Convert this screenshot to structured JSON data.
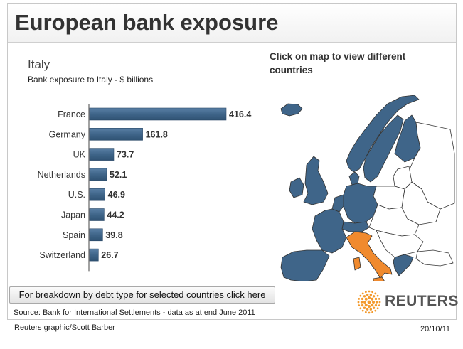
{
  "header": {
    "title": "European bank exposure"
  },
  "chart_panel": {
    "country": "Italy",
    "subtitle": "Bank exposure to Italy - $ billions",
    "button_label": "For breakdown by debt type for selected countries click here",
    "source": "Source: Bank for International Settlements - data as at end June 2011"
  },
  "chart_data": {
    "type": "bar",
    "orientation": "horizontal",
    "title": "Italy",
    "subtitle": "Bank exposure to Italy - $ billions",
    "categories": [
      "France",
      "Germany",
      "UK",
      "Netherlands",
      "U.S.",
      "Japan",
      "Spain",
      "Switzerland"
    ],
    "values": [
      416.4,
      161.8,
      73.7,
      52.1,
      46.9,
      44.2,
      39.8,
      26.7
    ],
    "value_labels": [
      "416.4",
      "161.8",
      "73.7",
      "52.1",
      "46.9",
      "44.2",
      "39.8",
      "26.7"
    ],
    "bar_color": "#3f6589",
    "xlim": [
      0,
      416.4
    ],
    "grid": false,
    "legend": "none"
  },
  "map_panel": {
    "instruction": "Click on map to view different countries",
    "selected_country": "Italy",
    "highlight_color": "#f08a2e",
    "country_color": "#3f6589",
    "other_color": "#ffffff"
  },
  "logo": {
    "text": "REUTERS",
    "icon": "reuters-dot-ring-icon",
    "color": "#f39a2d"
  },
  "footer": {
    "credit": "Reuters graphic/Scott Barber",
    "date": "20/10/11"
  }
}
